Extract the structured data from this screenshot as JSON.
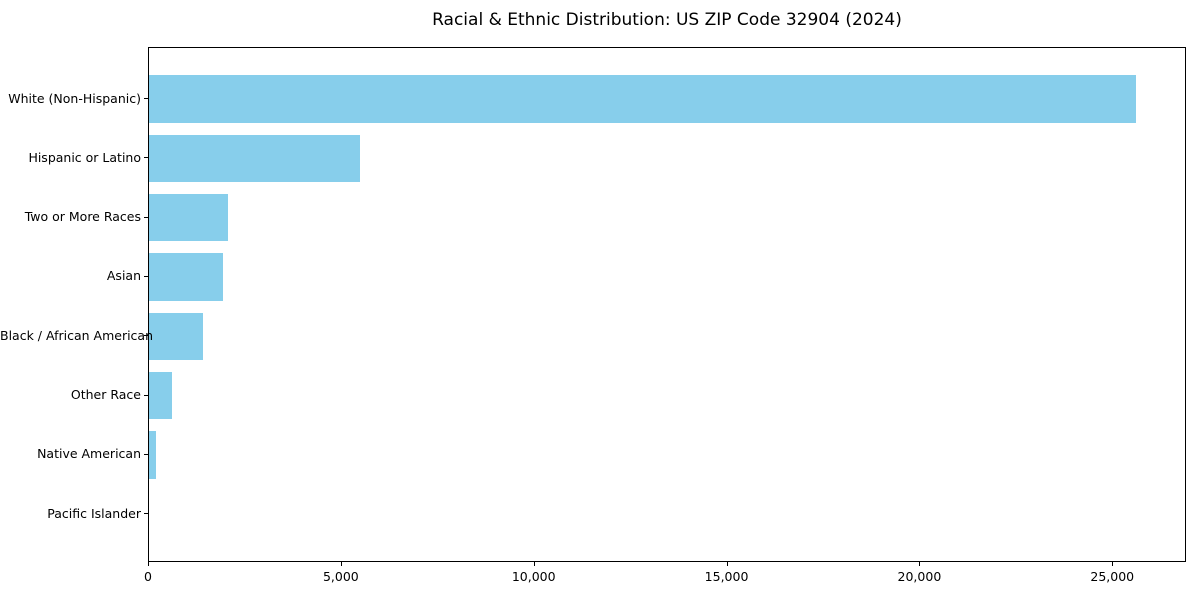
{
  "chart_data": {
    "type": "bar",
    "orientation": "horizontal",
    "title": "Racial & Ethnic Distribution: US ZIP Code 32904 (2024)",
    "categories": [
      "White (Non-Hispanic)",
      "Hispanic or Latino",
      "Two or More Races",
      "Asian",
      "Black / African American",
      "Other Race",
      "Native American",
      "Pacific Islander"
    ],
    "values": [
      25580,
      5480,
      2060,
      1930,
      1390,
      600,
      170,
      0
    ],
    "xlabel": "",
    "ylabel": "",
    "xlim": [
      0,
      26860
    ],
    "x_ticks": [
      0,
      5000,
      10000,
      15000,
      20000,
      25000
    ],
    "x_tick_labels": [
      "0",
      "5,000",
      "10,000",
      "15,000",
      "20,000",
      "25,000"
    ],
    "bar_color": "#87CEEB",
    "frame_color": "#000000",
    "text_color": "#000000",
    "background_color": "#FFFFFF",
    "grid": false,
    "legend": null
  }
}
